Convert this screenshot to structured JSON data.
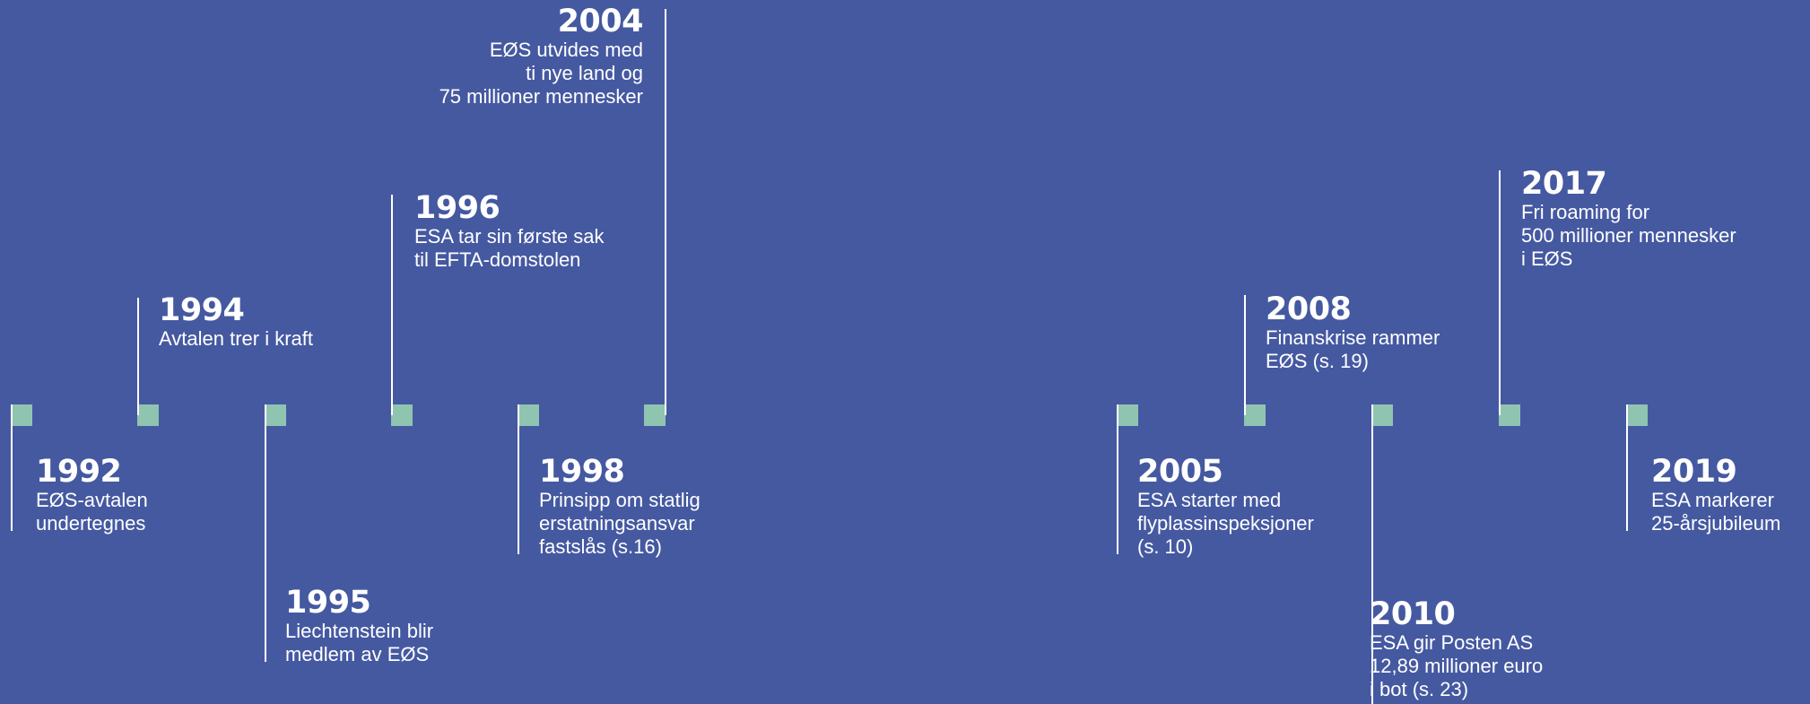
{
  "colors": {
    "background": "#4559a1",
    "marker": "#8fc4b0",
    "text": "#ffffff"
  },
  "events": [
    {
      "id": "1992",
      "year": "1992",
      "description": "EØS-avtalen\nundertegnes"
    },
    {
      "id": "1994",
      "year": "1994",
      "description": "Avtalen trer i kraft"
    },
    {
      "id": "1995",
      "year": "1995",
      "description": "Liechtenstein blir\nmedlem av EØS"
    },
    {
      "id": "1996",
      "year": "1996",
      "description": "ESA tar sin første sak\ntil EFTA-domstolen"
    },
    {
      "id": "1998",
      "year": "1998",
      "description": "Prinsipp om statlig\nerstatningsansvar\nfastslås (s.16)"
    },
    {
      "id": "2004",
      "year": "2004",
      "description": "EØS utvides med\nti nye land og\n75 millioner mennesker"
    },
    {
      "id": "2005",
      "year": "2005",
      "description": "ESA starter med\nflyplassinspeksjoner\n(s. 10)"
    },
    {
      "id": "2008",
      "year": "2008",
      "description": "Finanskrise rammer\nEØS  (s. 19)"
    },
    {
      "id": "2010",
      "year": "2010",
      "description": "ESA gir Posten AS\n12,89 millioner euro\ni bot (s. 23)"
    },
    {
      "id": "2017",
      "year": "2017",
      "description": "Fri roaming for\n500 millioner mennesker\ni EØS"
    },
    {
      "id": "2019",
      "year": "2019",
      "description": "ESA markerer\n25-årsjubileum"
    }
  ]
}
